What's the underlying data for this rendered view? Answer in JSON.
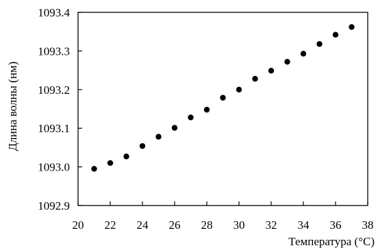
{
  "chart_data": {
    "type": "scatter",
    "title": "",
    "xlabel": "Температура (°C)",
    "ylabel": "Длина волны (нм)",
    "xlim": [
      20,
      38
    ],
    "ylim": [
      1092.9,
      1093.4
    ],
    "x_ticks": [
      "20",
      "22",
      "24",
      "26",
      "28",
      "30",
      "32",
      "34",
      "36",
      "38"
    ],
    "y_ticks": [
      "1092.9",
      "1093.0",
      "1093.1",
      "1093.2",
      "1093.3",
      "1093.4"
    ],
    "grid": false,
    "legend": "none",
    "marker_color": "#000000",
    "series": [
      {
        "x": [
          21,
          22,
          23,
          24,
          25,
          26,
          27,
          28,
          29,
          30,
          31,
          32,
          33,
          34,
          35,
          36,
          37
        ],
        "y": [
          1092.995,
          1093.01,
          1093.027,
          1093.054,
          1093.078,
          1093.101,
          1093.128,
          1093.148,
          1093.179,
          1093.2,
          1093.228,
          1093.249,
          1093.272,
          1093.293,
          1093.318,
          1093.342,
          1093.362
        ]
      }
    ]
  }
}
